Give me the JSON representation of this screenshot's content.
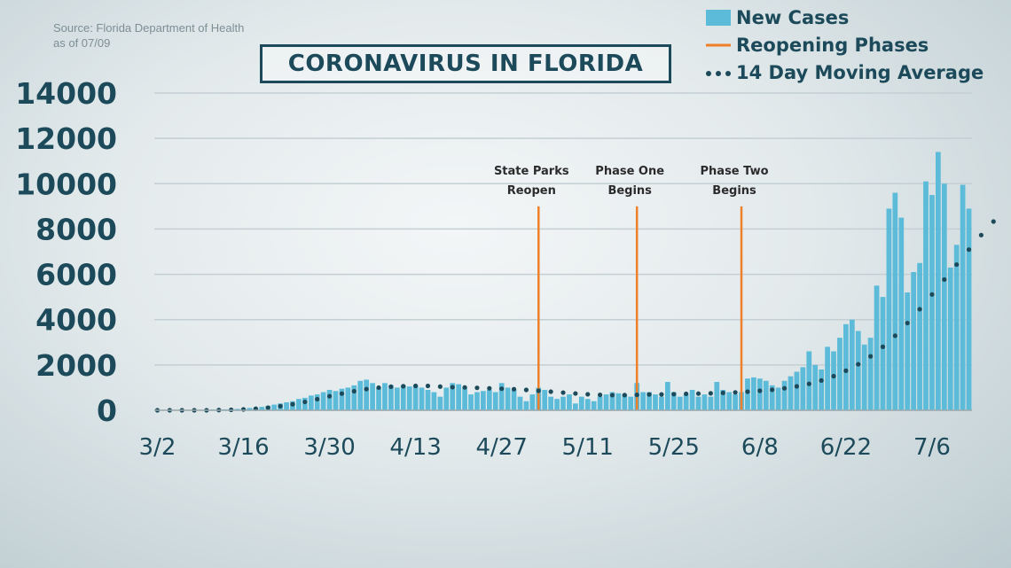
{
  "source": {
    "line1": "Source: Florida Department of Health",
    "line2": "as of 07/09"
  },
  "legend": {
    "new_cases": "New Cases",
    "reopening": "Reopening Phases",
    "moving_avg": "14 Day Moving Average"
  },
  "colors": {
    "bar": "#5bbbd9",
    "phase_line": "#f07f2a",
    "avg_dot": "#1c4a5a",
    "grid": "#c4cfd3",
    "text": "#1c4a5a"
  },
  "chart_data": {
    "type": "bar",
    "title": "CORONAVIRUS IN FLORIDA",
    "ylim": [
      0,
      14000
    ],
    "y_ticks": [
      "0",
      "2000",
      "4000",
      "6000",
      "8000",
      "10000",
      "12000",
      "14000"
    ],
    "x_tick_labels": [
      "3/2",
      "3/16",
      "3/30",
      "4/13",
      "4/27",
      "5/11",
      "5/25",
      "6/8",
      "6/22",
      "7/6"
    ],
    "x_start_date": "3/2",
    "grid": true,
    "legend_position": "top-right",
    "series": [
      {
        "name": "New Cases",
        "type": "bar",
        "values": [
          0,
          0,
          0,
          0,
          0,
          10,
          10,
          20,
          30,
          30,
          40,
          40,
          50,
          60,
          70,
          100,
          100,
          150,
          200,
          250,
          300,
          350,
          400,
          500,
          550,
          650,
          700,
          800,
          900,
          850,
          950,
          1000,
          1100,
          1300,
          1350,
          1200,
          1000,
          1200,
          1100,
          1000,
          1100,
          1050,
          1100,
          1000,
          900,
          800,
          600,
          1000,
          1200,
          1150,
          1000,
          700,
          800,
          850,
          900,
          800,
          1200,
          1000,
          900,
          600,
          400,
          700,
          1000,
          900,
          600,
          500,
          600,
          700,
          300,
          600,
          500,
          400,
          600,
          700,
          800,
          750,
          700,
          600,
          1200,
          800,
          800,
          700,
          600,
          1250,
          800,
          600,
          700,
          900,
          600,
          700,
          600,
          1250,
          900,
          800,
          700,
          800,
          1400,
          1450,
          1400,
          1300,
          1100,
          1000,
          1300,
          1500,
          1700,
          1900,
          2600,
          2000,
          1800,
          2800,
          2600,
          3200,
          3800,
          4000,
          3500,
          2900,
          3200,
          5500,
          5000,
          8900,
          9600,
          8500,
          5200,
          6100,
          6500,
          10100,
          9500,
          11400,
          10000,
          6300,
          7300,
          9950,
          8900
        ]
      },
      {
        "name": "14 Day Moving Average",
        "type": "line",
        "style": "dotted",
        "values": [
          0,
          0,
          0,
          0,
          0,
          0,
          0,
          0,
          0,
          5,
          10,
          15,
          20,
          30,
          40,
          55,
          70,
          90,
          115,
          145,
          180,
          220,
          265,
          315,
          370,
          430,
          490,
          555,
          620,
          680,
          735,
          790,
          840,
          890,
          935,
          970,
          1000,
          1020,
          1040,
          1050,
          1060,
          1070,
          1075,
          1080,
          1075,
          1065,
          1045,
          1030,
          1020,
          1015,
          1010,
          1000,
          990,
          980,
          970,
          960,
          950,
          940,
          930,
          920,
          900,
          880,
          860,
          840,
          820,
          800,
          780,
          760,
          740,
          720,
          705,
          690,
          680,
          672,
          668,
          668,
          670,
          675,
          680,
          690,
          700,
          700,
          700,
          705,
          712,
          720,
          726,
          730,
          735,
          740,
          748,
          756,
          766,
          778,
          790,
          805,
          822,
          840,
          860,
          880,
          905,
          935,
          970,
          1010,
          1055,
          1105,
          1165,
          1235,
          1315,
          1405,
          1505,
          1620,
          1745,
          1880,
          2030,
          2200,
          2380,
          2580,
          2800,
          3040,
          3290,
          3560,
          3850,
          4150,
          4460,
          4780,
          5110,
          5440,
          5770,
          6100,
          6430,
          6760,
          7090,
          7410,
          7730,
          8060,
          8330
        ]
      }
    ],
    "phases": [
      {
        "label_line1": "State Parks",
        "label_line2": "Reopen",
        "day_index": 62,
        "value": 9000
      },
      {
        "label_line1": "Phase One",
        "label_line2": "Begins",
        "day_index": 78,
        "value": 9000
      },
      {
        "label_line1": "Phase Two",
        "label_line2": "Begins",
        "day_index": 95,
        "value": 9000
      }
    ]
  }
}
